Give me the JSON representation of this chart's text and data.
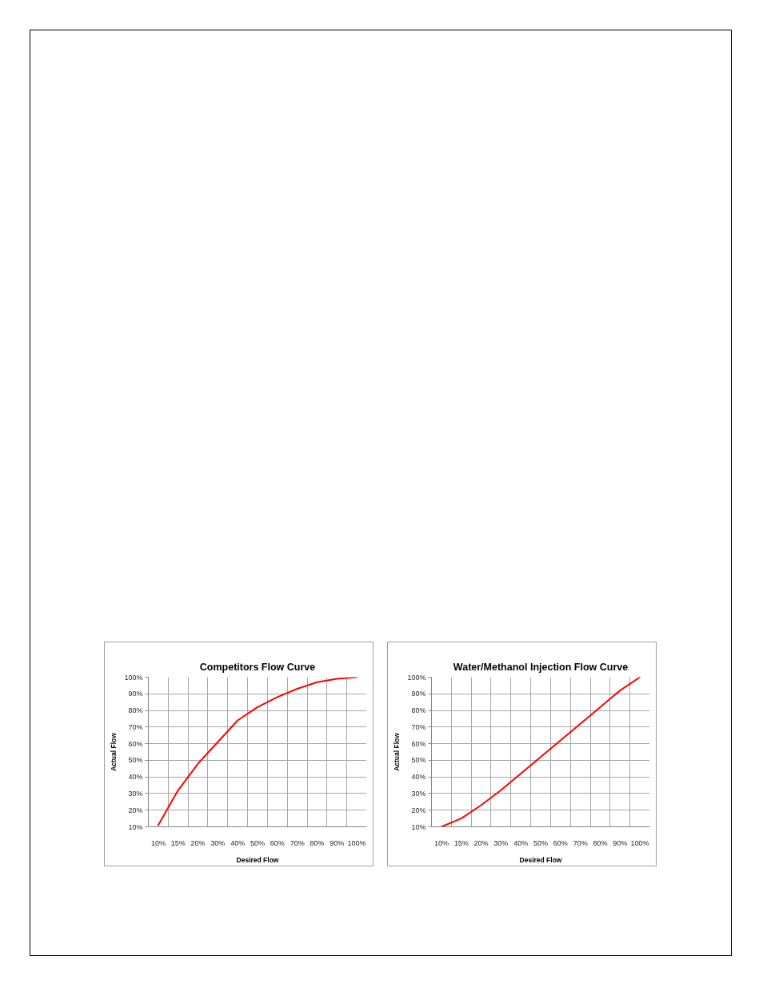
{
  "chart_data": [
    {
      "type": "line",
      "title": "Competitors Flow Curve",
      "xlabel": "Desired Flow",
      "ylabel": "Actual Flow",
      "categories": [
        "10%",
        "15%",
        "20%",
        "30%",
        "40%",
        "50%",
        "60%",
        "70%",
        "80%",
        "90%",
        "100%"
      ],
      "series": [
        {
          "color": "#ff0000",
          "values": [
            11,
            32,
            48,
            61,
            74,
            82,
            88,
            93,
            97,
            99,
            100
          ]
        }
      ],
      "ylim": [
        10,
        100
      ],
      "yticks": [
        {
          "value": 10,
          "label": "10%"
        },
        {
          "value": 20,
          "label": "20%"
        },
        {
          "value": 30,
          "label": "30%"
        },
        {
          "value": 40,
          "label": "40%"
        },
        {
          "value": 50,
          "label": "50%"
        },
        {
          "value": 60,
          "label": "60%"
        },
        {
          "value": 70,
          "label": "70%"
        },
        {
          "value": 80,
          "label": "80%"
        },
        {
          "value": 90,
          "label": "90%"
        },
        {
          "value": 100,
          "label": "100%"
        }
      ],
      "grid": true
    },
    {
      "type": "line",
      "title": "Water/Methanol Injection Flow Curve",
      "xlabel": "Desired Flow",
      "ylabel": "Actual Flow",
      "categories": [
        "10%",
        "15%",
        "20%",
        "30%",
        "40%",
        "50%",
        "60%",
        "70%",
        "80%",
        "90%",
        "100%"
      ],
      "series": [
        {
          "color": "#ff0000",
          "values": [
            10,
            15,
            23,
            32,
            42,
            52,
            62,
            72,
            82,
            92,
            100
          ]
        }
      ],
      "ylim": [
        10,
        100
      ],
      "yticks": [
        {
          "value": 10,
          "label": "10%"
        },
        {
          "value": 20,
          "label": "20%"
        },
        {
          "value": 30,
          "label": "30%"
        },
        {
          "value": 40,
          "label": "40%"
        },
        {
          "value": 50,
          "label": "50%"
        },
        {
          "value": 60,
          "label": "60%"
        },
        {
          "value": 70,
          "label": "70%"
        },
        {
          "value": 80,
          "label": "80%"
        },
        {
          "value": 90,
          "label": "90%"
        },
        {
          "value": 100,
          "label": "100%"
        }
      ],
      "grid": true
    }
  ]
}
